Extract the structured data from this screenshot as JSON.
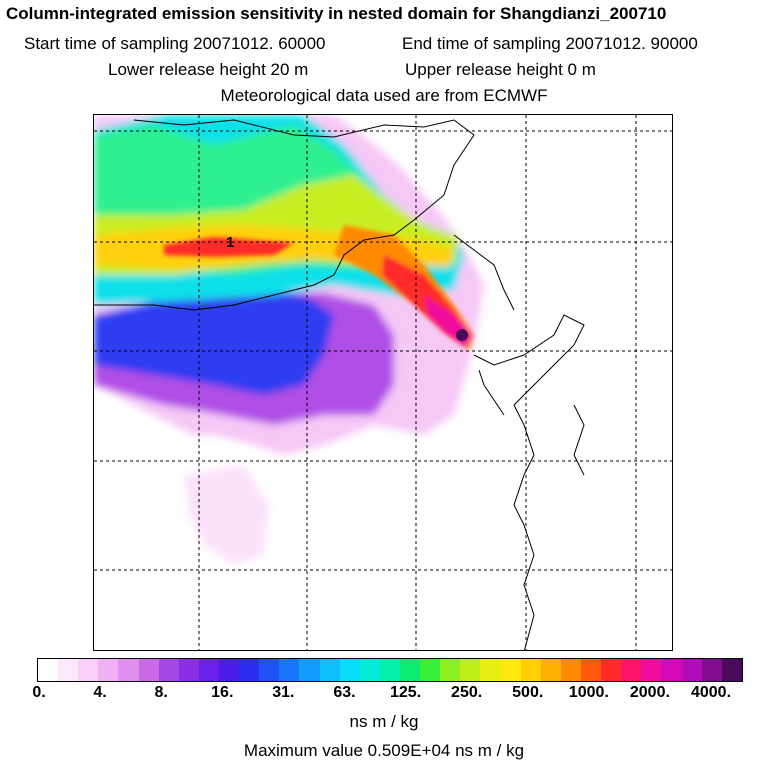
{
  "title": "Column-integrated emission sensitivity in nested domain for Shangdianzi_200710",
  "sampling": {
    "start": "Start time of sampling 20071012. 60000",
    "end": "End time of sampling 20071012. 90000"
  },
  "release": {
    "lower": "Lower release height   20 m",
    "upper": "Upper release height    0 m"
  },
  "met_source": "Meteorological data used are from ECMWF",
  "map": {
    "station_label": "1",
    "grid_line_color": "#000000",
    "coast_color": "#000000"
  },
  "colorbar": {
    "tick_labels": [
      "0.",
      "4.",
      "8.",
      "16.",
      "31.",
      "63.",
      "125.",
      "250.",
      "500.",
      "1000.",
      "2000.",
      "4000."
    ],
    "colors": [
      "#ffffff",
      "#fde7fd",
      "#f8cff8",
      "#f0b0f4",
      "#e08ef0",
      "#c86ae8",
      "#a447e4",
      "#8a2fe6",
      "#6a22e8",
      "#4a1ee8",
      "#2b2ef0",
      "#2050f8",
      "#1876fa",
      "#129cfc",
      "#0cc0fc",
      "#08dcf8",
      "#04ecd8",
      "#04f0a8",
      "#0ceb70",
      "#3af038",
      "#8af020",
      "#c0ee18",
      "#e6ee10",
      "#fde810",
      "#ffd008",
      "#ffb004",
      "#ff8a04",
      "#ff5a0c",
      "#ff2a2a",
      "#ff1468",
      "#f00c9c",
      "#d408b8",
      "#b00cb8",
      "#800c90",
      "#4a0a5a"
    ],
    "units": "ns m / kg",
    "max_value": "Maximum value  0.509E+04 ns m / kg"
  }
}
